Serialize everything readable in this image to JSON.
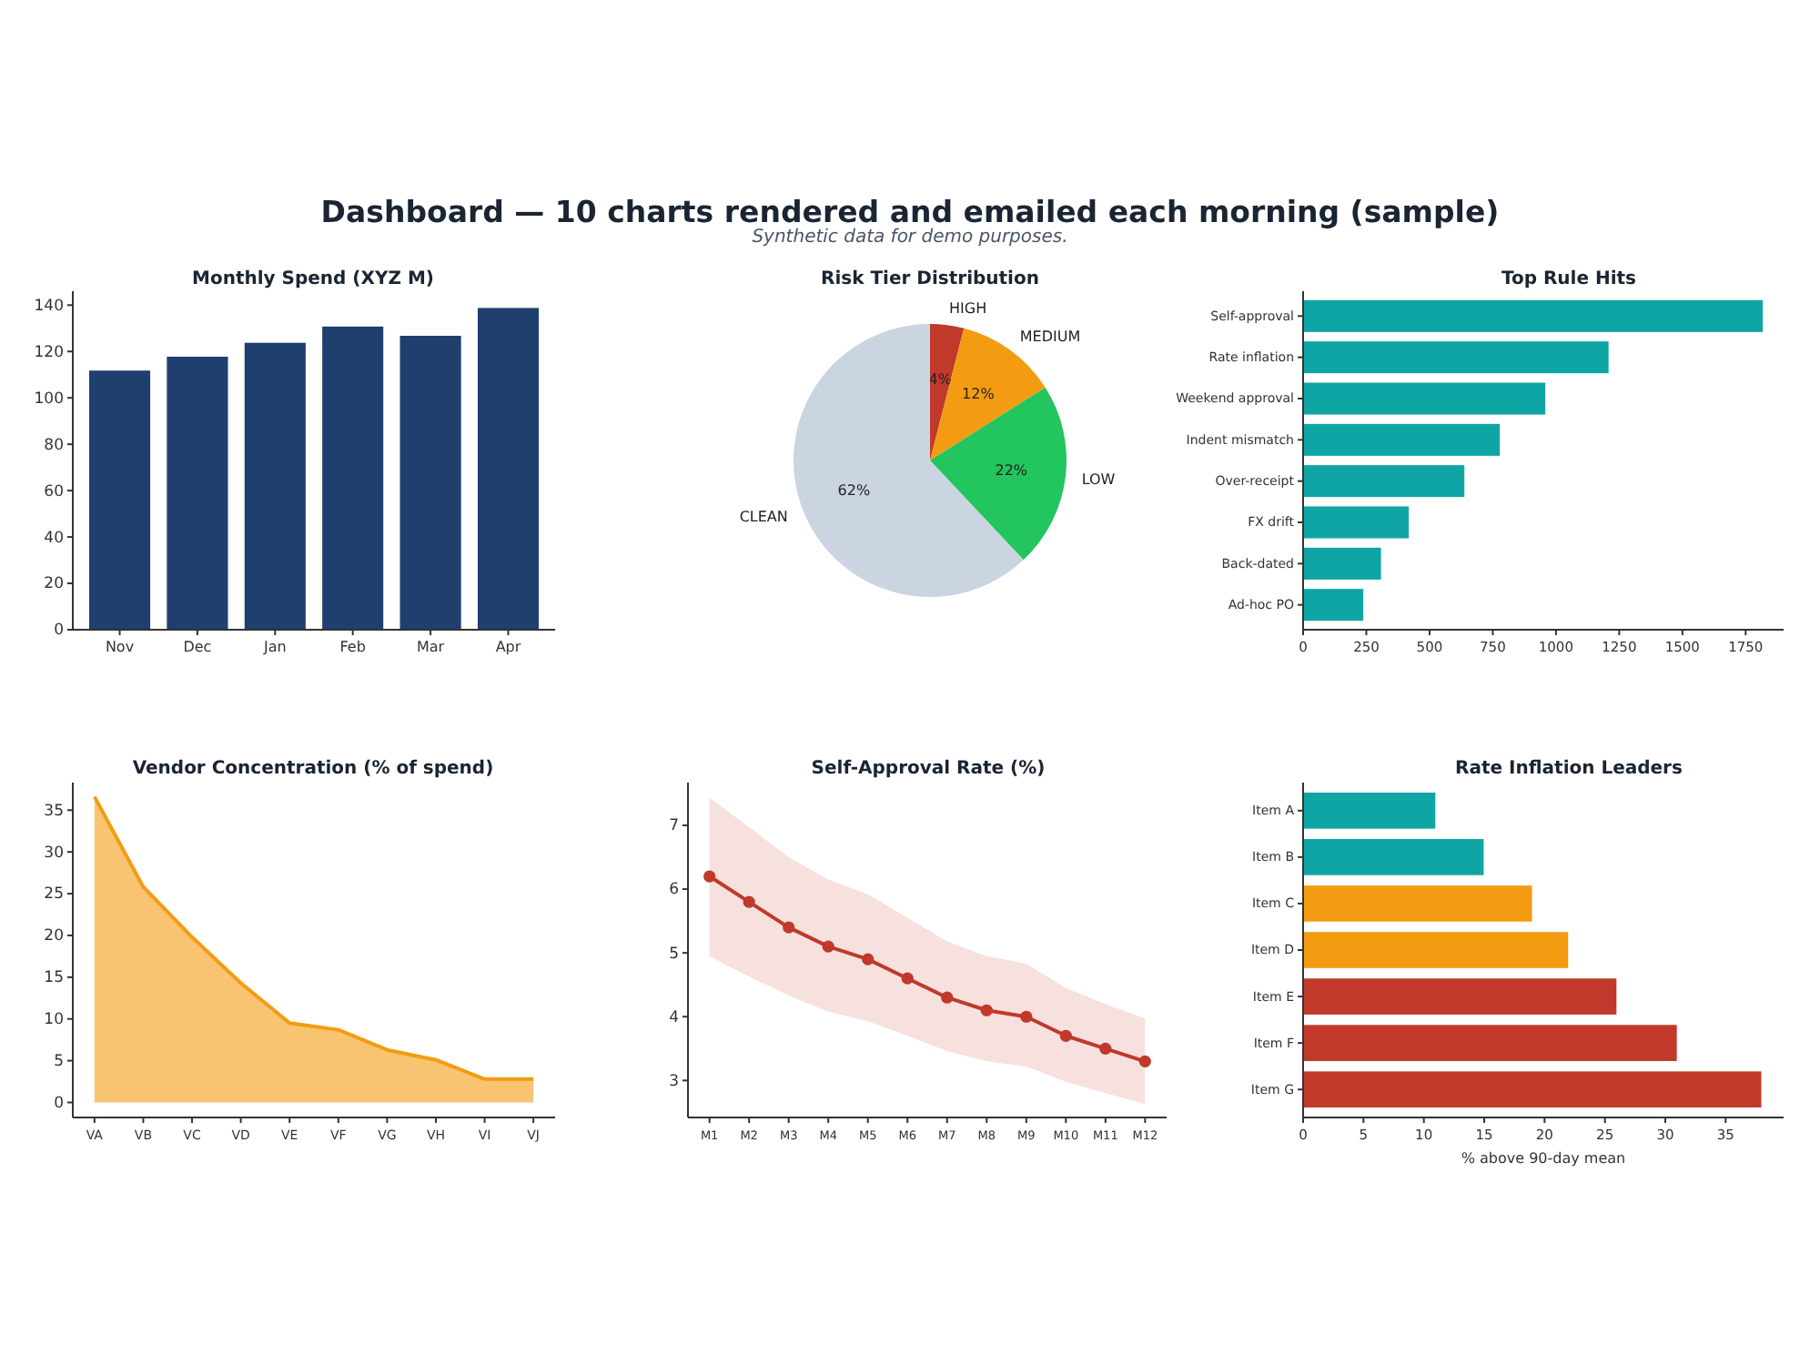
{
  "chart_data": [
    {
      "type": "other",
      "title": "Dashboard — 10 charts rendered and emailed each morning (sample)",
      "subtitle": "Synthetic data for demo purposes."
    },
    {
      "type": "bar",
      "title": "Monthly Spend (XYZ M)",
      "categories": [
        "Nov",
        "Dec",
        "Jan",
        "Feb",
        "Mar",
        "Apr"
      ],
      "values": [
        112,
        118,
        124,
        131,
        127,
        139
      ],
      "color": "#1f3f6e",
      "ylim": [
        0,
        146
      ],
      "yticks": [
        0,
        20,
        40,
        60,
        80,
        100,
        120,
        140
      ]
    },
    {
      "type": "pie",
      "title": "Risk Tier Distribution",
      "categories": [
        "HIGH",
        "MEDIUM",
        "LOW",
        "CLEAN"
      ],
      "values": [
        4,
        12,
        22,
        62
      ],
      "colors": [
        "#c0392b",
        "#f39c12",
        "#22c55e",
        "#cbd5e1"
      ],
      "value_labels": [
        "4%",
        "12%",
        "22%",
        "62%"
      ]
    },
    {
      "type": "bar",
      "orientation": "horizontal",
      "title": "Top Rule Hits",
      "categories": [
        "Self-approval",
        "Rate inflation",
        "Weekend approval",
        "Indent mismatch",
        "Over-receipt",
        "FX drift",
        "Back-dated",
        "Ad-hoc PO"
      ],
      "values": [
        1820,
        1210,
        960,
        780,
        640,
        420,
        310,
        240
      ],
      "color": "#10a5a5",
      "xlim": [
        0,
        1900
      ],
      "xticks": [
        0,
        250,
        500,
        750,
        1000,
        1250,
        1500,
        1750
      ]
    },
    {
      "type": "area",
      "title": "Vendor Concentration (% of spend)",
      "categories": [
        "VA",
        "VB",
        "VC",
        "VD",
        "VE",
        "VF",
        "VG",
        "VH",
        "VI",
        "VJ"
      ],
      "values": [
        36.6,
        25.8,
        19.8,
        14.3,
        9.5,
        8.7,
        6.3,
        5.1,
        2.8,
        2.8
      ],
      "color": "#f39c12",
      "ylim": [
        -1.8,
        38.3
      ],
      "yticks": [
        0,
        5,
        10,
        15,
        20,
        25,
        30,
        35
      ]
    },
    {
      "type": "line",
      "title": "Self-Approval Rate (%)",
      "categories": [
        "M1",
        "M2",
        "M3",
        "M4",
        "M5",
        "M6",
        "M7",
        "M8",
        "M9",
        "M10",
        "M11",
        "M12"
      ],
      "marker": "circle",
      "ylim": [
        2.42,
        7.67
      ],
      "yticks": [
        3,
        4,
        5,
        6,
        7
      ],
      "series": [
        {
          "color": "#c0392b",
          "values": [
            6.2,
            5.8,
            5.4,
            5.1,
            4.9,
            4.6,
            4.3,
            4.1,
            4.0,
            3.7,
            3.5,
            3.3
          ],
          "upper": [
            7.43,
            6.97,
            6.5,
            6.15,
            5.92,
            5.55,
            5.18,
            4.95,
            4.83,
            4.45,
            4.2,
            3.97
          ],
          "lower": [
            4.95,
            4.63,
            4.33,
            4.08,
            3.93,
            3.7,
            3.46,
            3.3,
            3.22,
            2.98,
            2.8,
            2.63
          ]
        }
      ]
    },
    {
      "type": "bar",
      "orientation": "horizontal",
      "title": "Rate Inflation Leaders",
      "xlabel": "% above 90-day mean",
      "categories": [
        "Item A",
        "Item B",
        "Item C",
        "Item D",
        "Item E",
        "Item F",
        "Item G"
      ],
      "values": [
        11,
        15,
        19,
        22,
        26,
        31,
        38
      ],
      "colors": [
        "#10a5a5",
        "#10a5a5",
        "#f39c12",
        "#f39c12",
        "#c0392b",
        "#c0392b",
        "#c0392b"
      ],
      "xlim": [
        0,
        39.8
      ],
      "xticks": [
        0,
        5,
        10,
        15,
        20,
        25,
        30,
        35
      ]
    }
  ]
}
